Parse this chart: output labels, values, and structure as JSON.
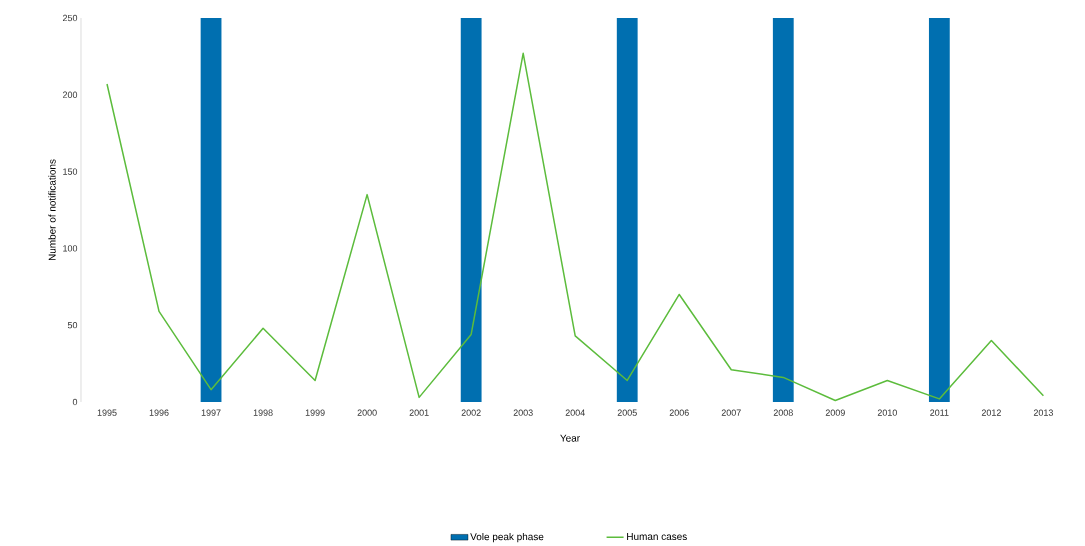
{
  "chart_data": {
    "type": "bar",
    "xlabel": "Year",
    "ylabel": "Number of notifications",
    "categories": [
      "1995",
      "1996",
      "1997",
      "1998",
      "1999",
      "2000",
      "2001",
      "2002",
      "2003",
      "2004",
      "2005",
      "2006",
      "2007",
      "2008",
      "2009",
      "2010",
      "2011",
      "2012",
      "2013"
    ],
    "series": [
      {
        "name": "Vole peak phase",
        "color": "#006fb0",
        "values": [
          null,
          null,
          250,
          null,
          null,
          null,
          null,
          250,
          null,
          null,
          250,
          null,
          null,
          250,
          null,
          null,
          250,
          null,
          null
        ]
      },
      {
        "name": "Human cases",
        "type": "line",
        "color": "#5cbc3c",
        "values": [
          207,
          59,
          8,
          48,
          14,
          135,
          3,
          44,
          227,
          43,
          14,
          70,
          21,
          16,
          1,
          14,
          2,
          40,
          4
        ]
      }
    ],
    "ylim": [
      0,
      250
    ],
    "yticks": [
      0,
      50,
      100,
      150,
      200,
      250
    ],
    "legend": "bottom",
    "grid": false
  }
}
